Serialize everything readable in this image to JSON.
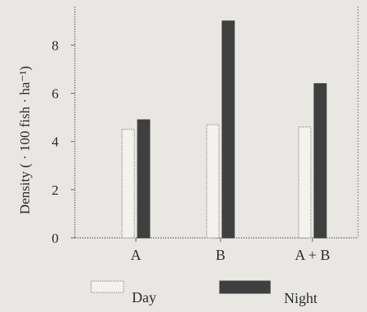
{
  "chart_data": {
    "type": "bar",
    "title": "",
    "xlabel": "",
    "ylabel": "Density ( · 100 fish · ha⁻¹)",
    "categories": [
      "A",
      "B",
      "A + B"
    ],
    "series": [
      {
        "name": "Day",
        "values": [
          4.5,
          4.7,
          4.6
        ]
      },
      {
        "name": "Night",
        "values": [
          4.9,
          9.0,
          6.4
        ]
      }
    ],
    "ylim": [
      0,
      9.6
    ],
    "yticks": [
      0,
      2,
      4,
      6,
      8
    ],
    "grid": false,
    "legend": "bottom",
    "colors": {
      "day_fill": "#f4f2ee",
      "day_stroke": "#8a8a8a",
      "night_fill": "#3f3f3f",
      "axis": "#6a6a6a",
      "background": "#e9e7e4"
    }
  }
}
